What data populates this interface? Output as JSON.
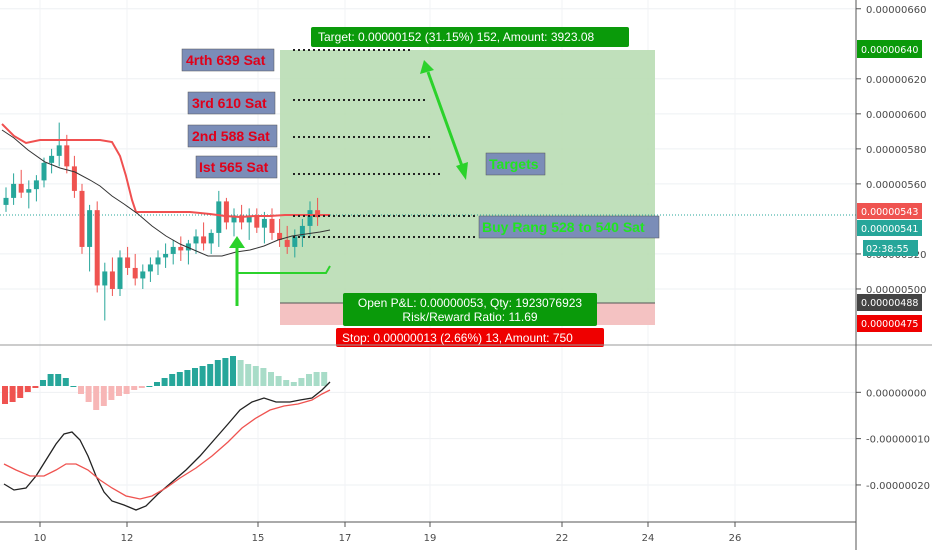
{
  "chart_data": [
    {
      "type": "candlestick",
      "ylim": [
        4.68e-06,
        6.65e-06
      ],
      "x_ticks": [
        "10",
        "12",
        "15",
        "17",
        "19",
        "22",
        "24",
        "26"
      ],
      "y_ticks": [
        "0.00000660",
        "0.00000620",
        "0.00000600",
        "0.00000580",
        "0.00000560",
        "0.00000520",
        "0.00000500"
      ],
      "price_tags": {
        "target": "0.00000640",
        "last": "0.00000543",
        "current": "0.00000541",
        "countdown": "02:38:55",
        "entry": "0.00000488",
        "stop": "0.00000475"
      },
      "position": {
        "target_label": "Target: 0.00000152 (31.15%) 152, Amount: 3923.08",
        "pnl_label": "Open P&L: 0.00000053, Qty: 1923076923",
        "rr_label": "Risk/Reward Ratio: 11.69",
        "stop_label": "Stop: 0.00000013 (2.66%) 13, Amount: 750",
        "entry": 4.88e-06,
        "target": 6.4e-06,
        "stop": 4.75e-06
      },
      "annotations": {
        "t4": "4rth 639 Sat",
        "t3": "3rd 610 Sat",
        "t2": "2nd 588 Sat",
        "t1": "Ist 565 Sat",
        "targets": "Targets",
        "buy": "Buy Rang 528 to 540 Sat"
      },
      "levels": [
        6.4e-06,
        6.1e-06,
        5.88e-06,
        5.65e-06,
        5.4e-06,
        5.28e-06
      ],
      "candles": [
        [
          5.48e-06,
          5.58e-06,
          5.44e-06,
          5.52e-06
        ],
        [
          5.52e-06,
          5.66e-06,
          5.48e-06,
          5.6e-06
        ],
        [
          5.6e-06,
          5.68e-06,
          5.52e-06,
          5.55e-06
        ],
        [
          5.55e-06,
          5.62e-06,
          5.46e-06,
          5.57e-06
        ],
        [
          5.57e-06,
          5.65e-06,
          5.5e-06,
          5.62e-06
        ],
        [
          5.62e-06,
          5.75e-06,
          5.58e-06,
          5.72e-06
        ],
        [
          5.72e-06,
          5.8e-06,
          5.66e-06,
          5.76e-06
        ],
        [
          5.76e-06,
          5.95e-06,
          5.7e-06,
          5.82e-06
        ],
        [
          5.82e-06,
          5.88e-06,
          5.66e-06,
          5.7e-06
        ],
        [
          5.7e-06,
          5.76e-06,
          5.52e-06,
          5.56e-06
        ],
        [
          5.56e-06,
          5.6e-06,
          5.2e-06,
          5.24e-06
        ],
        [
          5.24e-06,
          5.48e-06,
          5.1e-06,
          5.45e-06
        ],
        [
          5.45e-06,
          5.5e-06,
          4.98e-06,
          5.02e-06
        ],
        [
          5.02e-06,
          5.15e-06,
          4.82e-06,
          5.1e-06
        ],
        [
          5.1e-06,
          5.18e-06,
          4.96e-06,
          5e-06
        ],
        [
          5e-06,
          5.22e-06,
          4.96e-06,
          5.18e-06
        ],
        [
          5.18e-06,
          5.24e-06,
          5.08e-06,
          5.12e-06
        ],
        [
          5.12e-06,
          5.2e-06,
          5.02e-06,
          5.06e-06
        ],
        [
          5.06e-06,
          5.14e-06,
          5e-06,
          5.1e-06
        ],
        [
          5.1e-06,
          5.18e-06,
          5.04e-06,
          5.14e-06
        ],
        [
          5.14e-06,
          5.22e-06,
          5.08e-06,
          5.18e-06
        ],
        [
          5.18e-06,
          5.26e-06,
          5.12e-06,
          5.2e-06
        ],
        [
          5.2e-06,
          5.28e-06,
          5.14e-06,
          5.24e-06
        ],
        [
          5.24e-06,
          5.3e-06,
          5.16e-06,
          5.22e-06
        ],
        [
          5.22e-06,
          5.28e-06,
          5.14e-06,
          5.26e-06
        ],
        [
          5.26e-06,
          5.34e-06,
          5.2e-06,
          5.3e-06
        ],
        [
          5.3e-06,
          5.38e-06,
          5.22e-06,
          5.26e-06
        ],
        [
          5.26e-06,
          5.34e-06,
          5.2e-06,
          5.32e-06
        ],
        [
          5.32e-06,
          5.56e-06,
          5.24e-06,
          5.5e-06
        ],
        [
          5.5e-06,
          5.52e-06,
          5.34e-06,
          5.38e-06
        ],
        [
          5.38e-06,
          5.46e-06,
          5.3e-06,
          5.42e-06
        ],
        [
          5.42e-06,
          5.48e-06,
          5.34e-06,
          5.38e-06
        ],
        [
          5.38e-06,
          5.46e-06,
          5.28e-06,
          5.42e-06
        ],
        [
          5.42e-06,
          5.46e-06,
          5.32e-06,
          5.35e-06
        ],
        [
          5.35e-06,
          5.44e-06,
          5.26e-06,
          5.4e-06
        ],
        [
          5.4e-06,
          5.46e-06,
          5.28e-06,
          5.32e-06
        ],
        [
          5.32e-06,
          5.4e-06,
          5.24e-06,
          5.28e-06
        ],
        [
          5.28e-06,
          5.36e-06,
          5.2e-06,
          5.24e-06
        ],
        [
          5.24e-06,
          5.34e-06,
          5.18e-06,
          5.3e-06
        ],
        [
          5.3e-06,
          5.4e-06,
          5.24e-06,
          5.36e-06
        ],
        [
          5.36e-06,
          5.5e-06,
          5.3e-06,
          5.45e-06
        ],
        [
          5.45e-06,
          5.52e-06,
          5.36e-06,
          5.41e-06
        ]
      ]
    },
    {
      "type": "macd",
      "y_ticks": [
        "0.00000000",
        "-0.00000010",
        "-0.00000020"
      ],
      "ylim": [
        -2.8e-07,
        1e-07
      ]
    }
  ],
  "colors": {
    "up": "#26a69a",
    "down": "#ef5350",
    "target_zone": "#b9ddb4",
    "stop_zone": "#f4c2c2",
    "label_green": "#0a9a0a",
    "label_red": "#ef0000"
  }
}
